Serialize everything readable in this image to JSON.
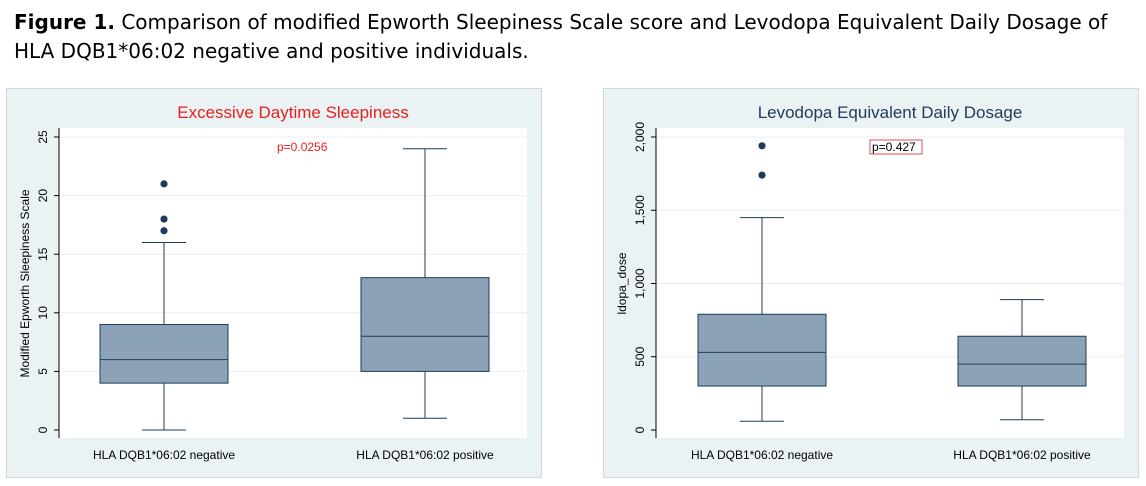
{
  "caption": {
    "label": "Figure 1.",
    "text": " Comparison of modified Epworth Sleepiness Scale score and Levodopa Equivalent Daily Dosage of HLA DQB1*06:02 negative and positive individuals."
  },
  "chart_data": [
    {
      "type": "box",
      "title": "Excessive Daytime Sleepiness",
      "title_color": "#e8201e",
      "xlabel": "",
      "ylabel": "Modified Epworth Sleepiness Scale",
      "ylim": [
        0,
        25
      ],
      "yticks": [
        0,
        5,
        10,
        15,
        20,
        25
      ],
      "ytick_labels": [
        "0",
        "5",
        "10",
        "15",
        "20",
        "25"
      ],
      "grid": true,
      "annotation": {
        "text": "p=0.0256",
        "color": "#e8201e",
        "boxed": false
      },
      "categories": [
        "HLA DQB1*06:02 negative",
        "HLA DQB1*06:02 positive"
      ],
      "boxes": [
        {
          "whisker_low": 0,
          "q1": 4,
          "median": 6,
          "q3": 9,
          "whisker_high": 16,
          "outliers": [
            17,
            18,
            21
          ]
        },
        {
          "whisker_low": 1,
          "q1": 5,
          "median": 8,
          "q3": 13,
          "whisker_high": 24,
          "outliers": []
        }
      ],
      "box_color": "#8ca2b6"
    },
    {
      "type": "box",
      "title": "Levodopa Equivalent Daily Dosage",
      "title_color": "#1f3b5a",
      "xlabel": "",
      "ylabel": "ldopa_dose",
      "ylim": [
        0,
        2000
      ],
      "yticks": [
        0,
        500,
        1000,
        1500,
        2000
      ],
      "ytick_labels": [
        "0",
        "500",
        "1,000",
        "1,500",
        "2,000"
      ],
      "grid": true,
      "annotation": {
        "text": "p=0.427",
        "color": "#000000",
        "boxed": true
      },
      "categories": [
        "HLA DQB1*06:02 negative",
        "HLA DQB1*06:02 positive"
      ],
      "boxes": [
        {
          "whisker_low": 60,
          "q1": 300,
          "median": 530,
          "q3": 790,
          "whisker_high": 1450,
          "outliers": [
            1740,
            1940
          ]
        },
        {
          "whisker_low": 70,
          "q1": 300,
          "median": 450,
          "q3": 640,
          "whisker_high": 890,
          "outliers": []
        }
      ],
      "box_color": "#8ca2b6"
    }
  ]
}
